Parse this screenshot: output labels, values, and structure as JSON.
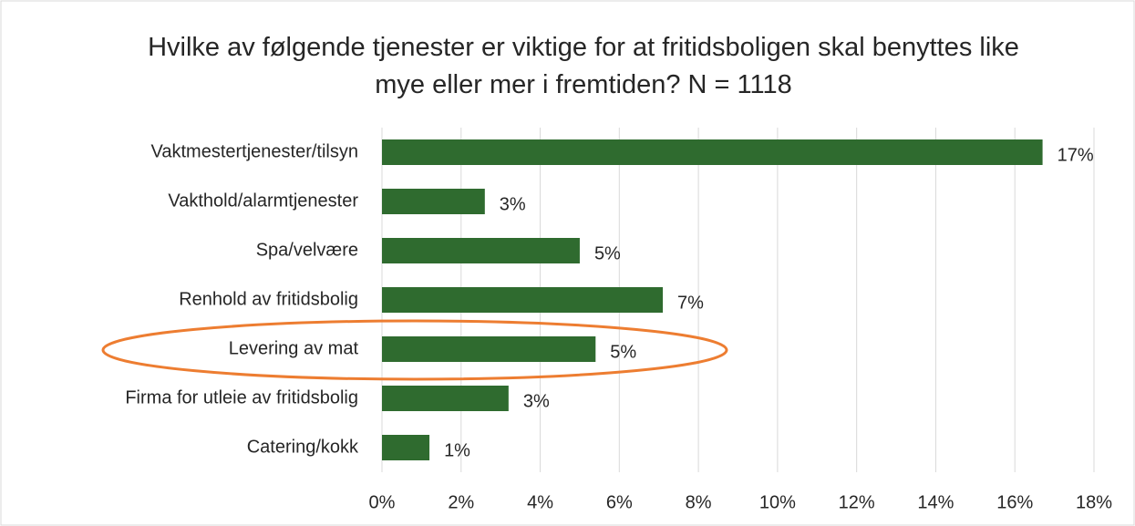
{
  "chart_data": {
    "type": "bar",
    "orientation": "horizontal",
    "title": "Hvilke av følgende tjenester er viktige for at fritidsboligen skal benyttes like mye eller mer i fremtiden? N = 1118",
    "categories": [
      "Vaktmestertjenester/tilsyn",
      "Vakthold/alarmtjenester",
      "Spa/velvære",
      "Renhold av fritidsbolig",
      "Levering av mat",
      "Firma for utleie av fritidsbolig",
      "Catering/kokk"
    ],
    "values": [
      16.7,
      2.6,
      5.0,
      7.1,
      5.4,
      3.2,
      1.2
    ],
    "value_labels": [
      "17%",
      "3%",
      "5%",
      "7%",
      "5%",
      "3%",
      "1%"
    ],
    "color": "#2f6b2f",
    "xlim": [
      0,
      18
    ],
    "xticks": [
      {
        "value": 0,
        "label": "0%"
      },
      {
        "value": 2,
        "label": "2%"
      },
      {
        "value": 4,
        "label": "4%"
      },
      {
        "value": 6,
        "label": "6%"
      },
      {
        "value": 8,
        "label": "8%"
      },
      {
        "value": 10,
        "label": "10%"
      },
      {
        "value": 12,
        "label": "12%"
      },
      {
        "value": 14,
        "label": "14%"
      },
      {
        "value": 16,
        "label": "16%"
      },
      {
        "value": 18,
        "label": "18%"
      }
    ],
    "grid": true
  }
}
